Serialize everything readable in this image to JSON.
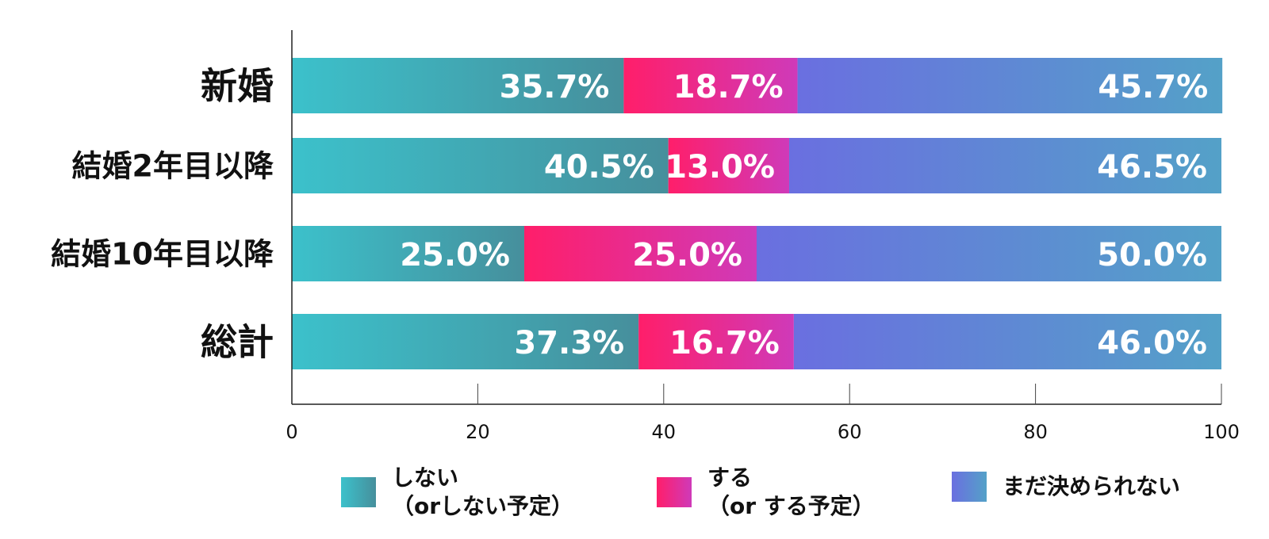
{
  "chart_data": {
    "type": "bar",
    "orientation": "horizontal",
    "stacked": true,
    "categories": [
      "新婚",
      "結婚2年目以降",
      "結婚10年目以降",
      "総計"
    ],
    "series": [
      {
        "name": "しない（orしない予定）",
        "values": [
          35.7,
          40.5,
          25.0,
          37.3
        ],
        "labels": [
          "35.7%",
          "40.5%",
          "25.0%",
          "37.3%"
        ],
        "color_from": "#3cc1cb",
        "color_to": "#468f9c"
      },
      {
        "name": "する（orする予定）",
        "values": [
          18.7,
          13.0,
          25.0,
          16.7
        ],
        "labels": [
          "18.7%",
          "13.0%",
          "25.0%",
          "16.7%"
        ],
        "color_from": "#ff1e6a",
        "color_to": "#cf3ab9"
      },
      {
        "name": "まだ決められない",
        "values": [
          45.7,
          46.5,
          50.0,
          46.0
        ],
        "labels": [
          "45.7%",
          "46.5%",
          "50.0%",
          "46.0%"
        ],
        "color_from": "#6a6fe0",
        "color_to": "#54a1c8"
      }
    ],
    "xlim": [
      0,
      100
    ],
    "xticks": [
      "0",
      "20",
      "40",
      "60",
      "80",
      "100"
    ],
    "grid": false,
    "legend_position": "bottom"
  },
  "legend": [
    {
      "line1": "しない",
      "line2": "（orしない予定）",
      "color_from": "#3cc1cb",
      "color_to": "#468f9c"
    },
    {
      "line1": "する",
      "line2": "（or する予定）",
      "color_from": "#ff1e6a",
      "color_to": "#cf3ab9"
    },
    {
      "line1": "まだ決められない",
      "line2": "",
      "color_from": "#6a6fe0",
      "color_to": "#54a1c8"
    }
  ]
}
